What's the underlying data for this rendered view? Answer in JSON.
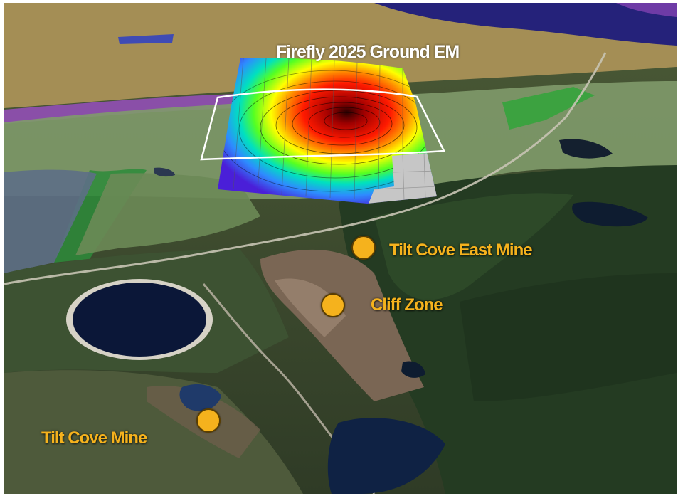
{
  "map": {
    "title": "Firefly 2025 Ground EM",
    "marker_color": "#F5B21D",
    "label_color": "#F5B21D",
    "sites": [
      {
        "name": "Tilt Cove East Mine"
      },
      {
        "name": "Cliff Zone"
      },
      {
        "name": "Tilt Cove Mine"
      }
    ]
  }
}
